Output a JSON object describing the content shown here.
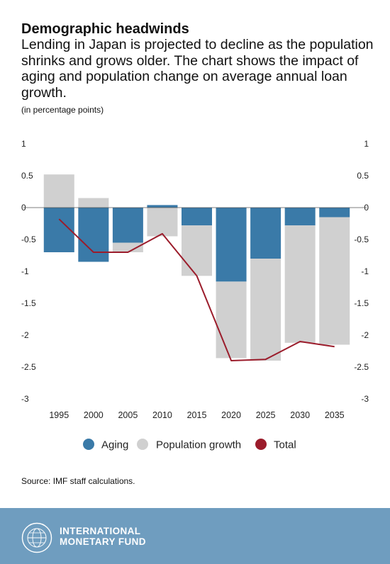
{
  "header": {
    "title": "Demographic headwinds",
    "subtitle": "Lending in Japan is projected to decline as the population shrinks and grows older. The chart shows the impact of aging and population change on average annual loan growth.",
    "units": "(in percentage points)"
  },
  "chart_data": {
    "type": "bar",
    "stacked": true,
    "categories": [
      "1995",
      "2000",
      "2005",
      "2010",
      "2015",
      "2020",
      "2025",
      "2030",
      "2035"
    ],
    "series": [
      {
        "name": "Aging",
        "type": "bar",
        "color": "#3a7aa8",
        "values": [
          -0.7,
          -0.85,
          -0.55,
          0.04,
          -0.28,
          -1.16,
          -0.8,
          -0.28,
          -0.15
        ]
      },
      {
        "name": "Population growth",
        "type": "bar",
        "color": "#d0d0d0",
        "values": [
          0.52,
          0.15,
          -0.15,
          -0.45,
          -0.79,
          -1.2,
          -1.6,
          -1.84,
          -2.0
        ]
      },
      {
        "name": "Total",
        "type": "line",
        "color": "#9b1c2b",
        "values": [
          -0.18,
          -0.7,
          -0.7,
          -0.41,
          -1.07,
          -2.4,
          -2.38,
          -2.1,
          -2.18
        ]
      }
    ],
    "ylim": [
      -3,
      1
    ],
    "yticks": [
      1,
      0.5,
      0,
      -0.5,
      -1,
      -1.5,
      -2,
      -2.5,
      -3
    ],
    "ytick_labels": [
      "1",
      "0.5",
      "0",
      "-0.5",
      "-1",
      "-1.5",
      "-2",
      "-2.5",
      "-3"
    ],
    "legend_position": "bottom",
    "grid": false
  },
  "source": "Source: IMF staff calculations.",
  "footer": {
    "org_line1": "INTERNATIONAL",
    "org_line2": "MONETARY FUND",
    "background_color": "#6f9dbf"
  }
}
